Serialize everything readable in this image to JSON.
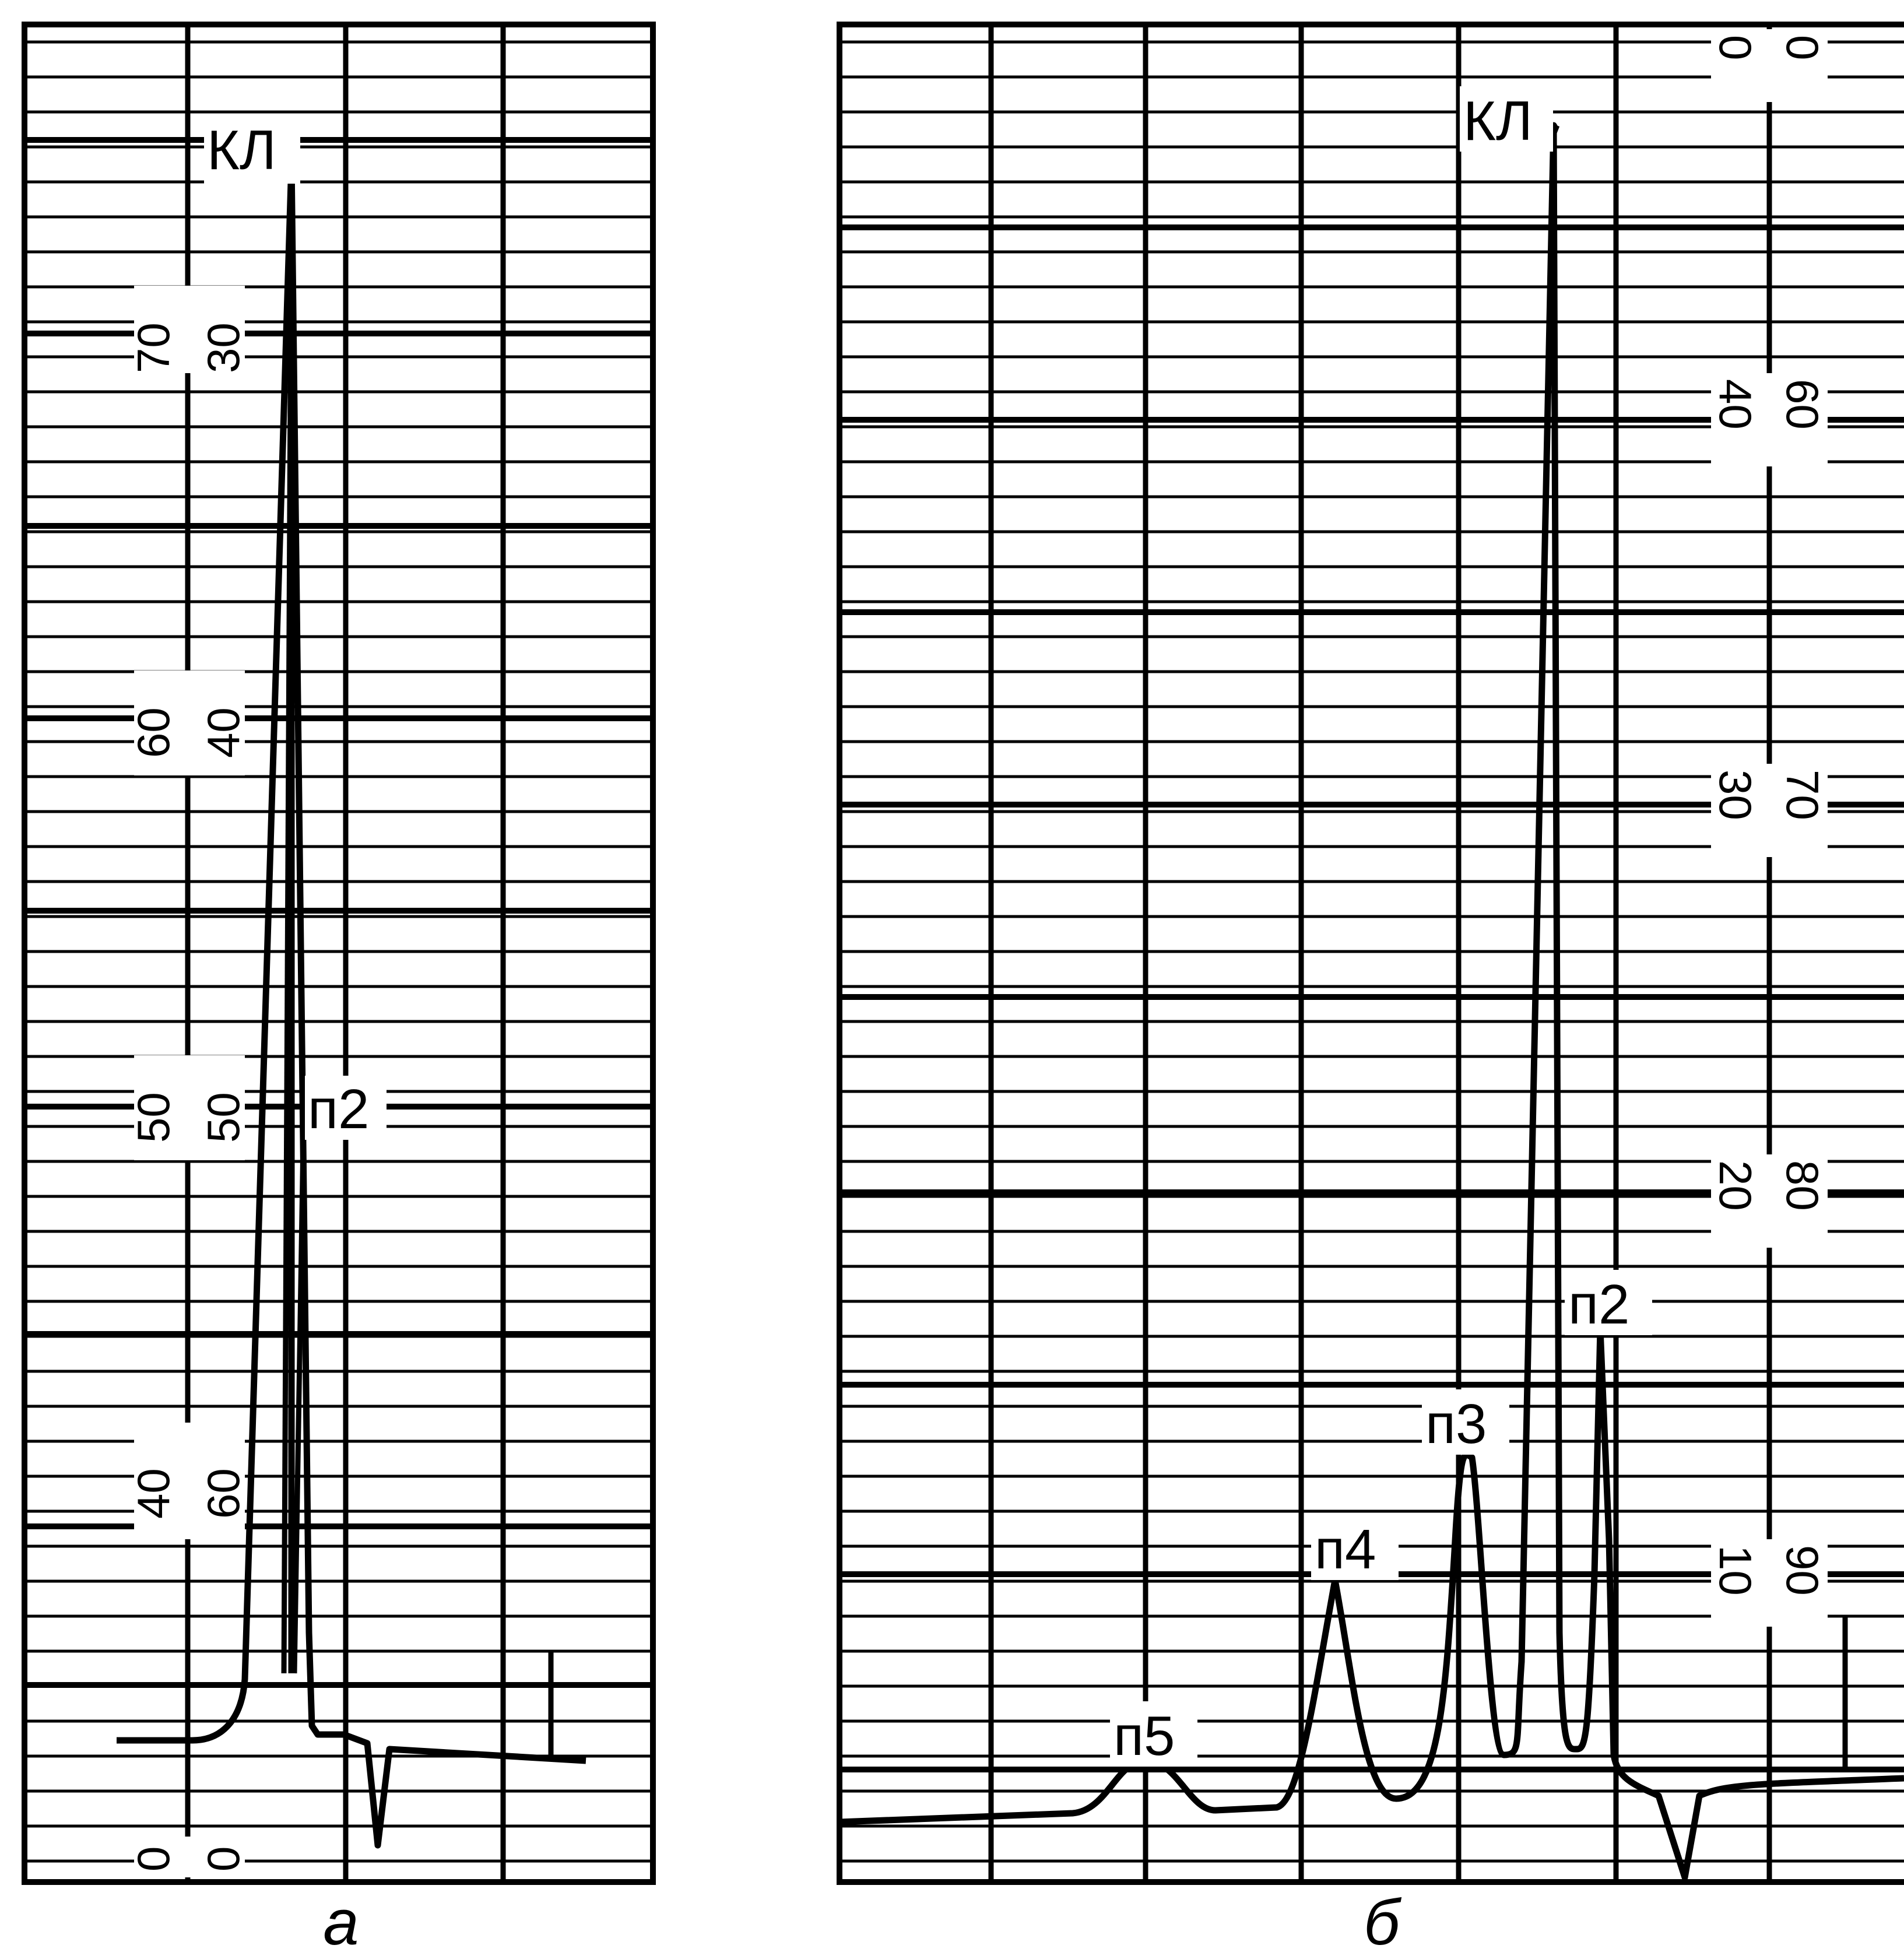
{
  "chart_data": [
    {
      "type": "line",
      "panel_label": "а",
      "scale_left": [
        "0",
        "40",
        "50",
        "60",
        "70"
      ],
      "scale_right": [
        "0",
        "60",
        "50",
        "40",
        "30"
      ],
      "peaks": [
        {
          "label": "КЛ"
        },
        {
          "label": "п2"
        }
      ],
      "grid": true
    },
    {
      "type": "line",
      "panel_label": "б",
      "scale_left": [
        "0",
        "40",
        "30",
        "20",
        "10"
      ],
      "scale_right": [
        "0",
        "60",
        "70",
        "80",
        "90"
      ],
      "peaks": [
        {
          "label": "КЛ"
        },
        {
          "label": "п2"
        },
        {
          "label": "п3"
        },
        {
          "label": "п4"
        },
        {
          "label": "п5"
        }
      ],
      "grid": true
    }
  ]
}
